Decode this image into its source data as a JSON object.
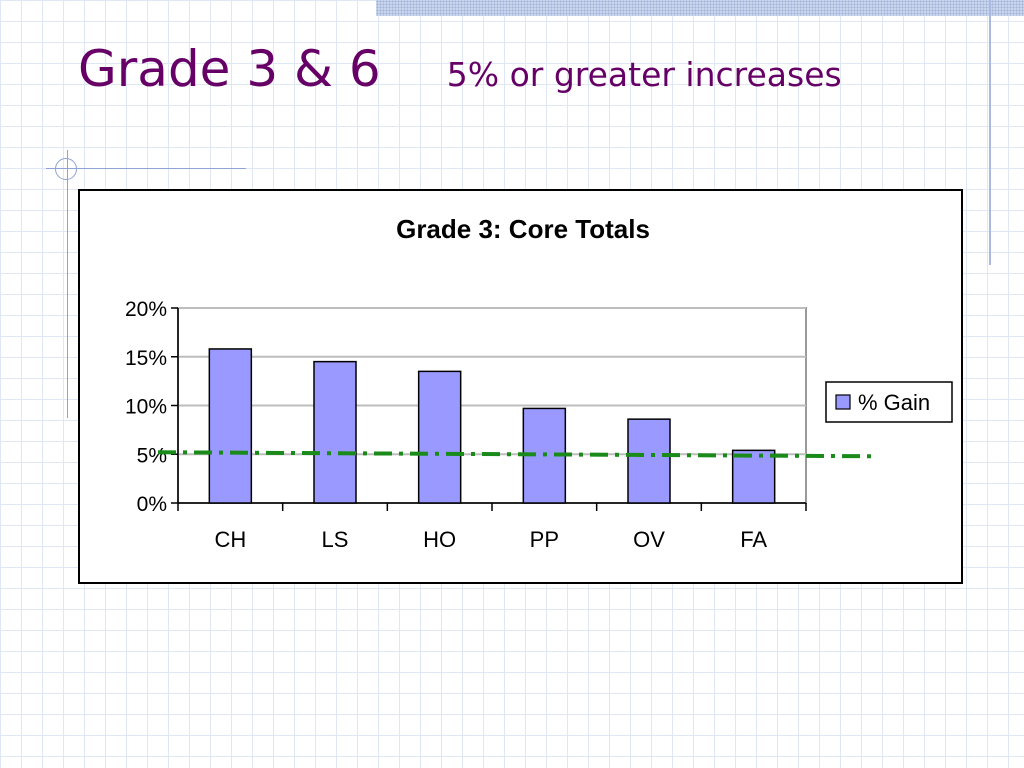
{
  "slide": {
    "title": "Grade 3 & 6",
    "subtitle": "5% or greater increases",
    "title_color": "#660066"
  },
  "chart_data": {
    "type": "bar",
    "title": "Grade 3: Core Totals",
    "categories": [
      "CH",
      "LS",
      "HO",
      "PP",
      "OV",
      "FA"
    ],
    "series": [
      {
        "name": "% Gain",
        "values": [
          15.8,
          14.5,
          13.5,
          9.7,
          8.6,
          5.4
        ],
        "color": "#9999ff"
      }
    ],
    "ylim": [
      0,
      20
    ],
    "yticks": [
      "0%",
      "5%",
      "10%",
      "15%",
      "20%"
    ],
    "ytick_values": [
      0,
      5,
      10,
      15,
      20
    ],
    "grid": true,
    "legend": "right",
    "reference_line": {
      "value": 5,
      "color": "#1a8a1a",
      "style": "dash-dot"
    }
  }
}
